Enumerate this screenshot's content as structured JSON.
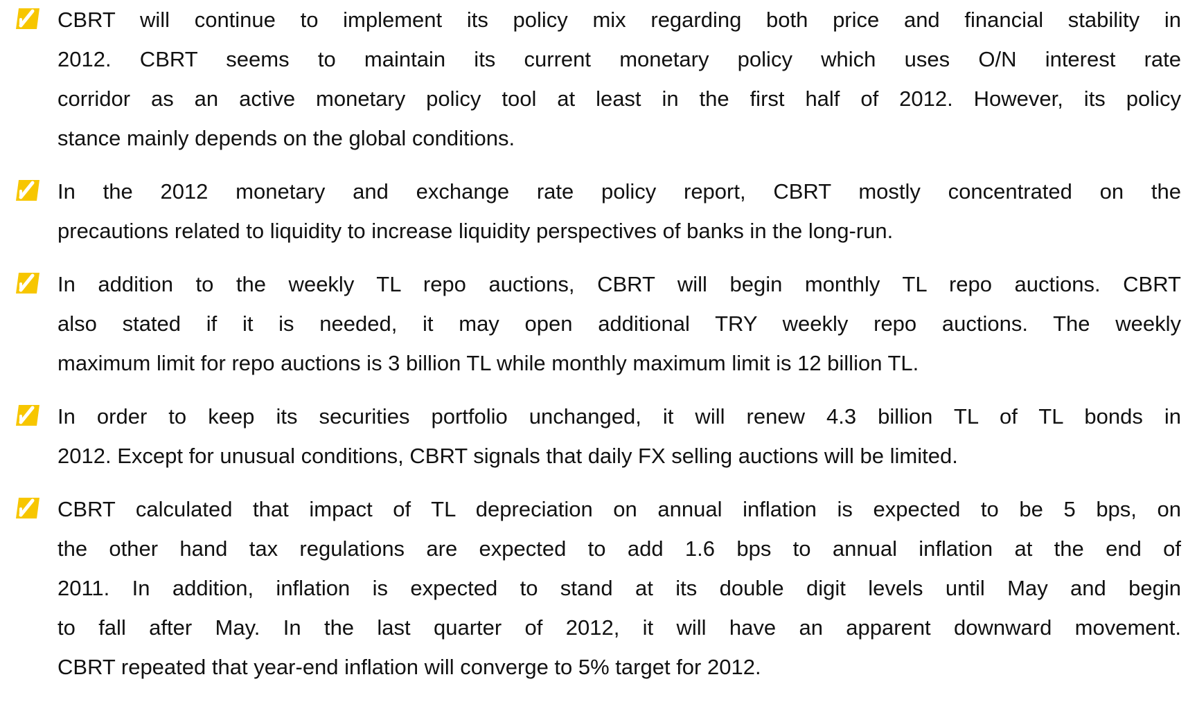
{
  "bullets": [
    {
      "lines": [
        "CBRT will continue to implement its policy mix regarding both price and financial stability in",
        "2012. CBRT seems to maintain its current monetary policy which uses O/N interest rate",
        "corridor as an active monetary policy tool at least in the first half of 2012. However, its policy",
        "stance mainly depends on the global conditions."
      ]
    },
    {
      "lines": [
        "In the 2012 monetary and exchange rate policy report, CBRT mostly concentrated on the",
        "precautions related to liquidity to increase liquidity perspectives of banks in the long-run."
      ]
    },
    {
      "lines": [
        "In addition to the weekly  TL repo auctions, CBRT will begin monthly TL repo auctions. CBRT",
        "also stated if it is needed, it may open additional TRY weekly repo auctions. The weekly",
        "maximum limit for repo auctions is 3 billion TL while monthly maximum limit is 12 billion TL."
      ]
    },
    {
      "lines": [
        "In order to keep its securities portfolio unchanged, it will renew 4.3 billion TL of TL bonds in",
        "2012. Except for unusual conditions, CBRT signals that daily FX selling auctions will be limited."
      ]
    },
    {
      "lines": [
        "CBRT calculated that impact of TL depreciation on annual inflation is expected to be 5 bps, on",
        "the other hand tax regulations are expected to add 1.6 bps to annual inflation at the end of",
        "2011. In addition, inflation is expected to stand at its double digit levels until May and begin",
        "to fall after May. In the last quarter of 2012, it will have an apparent downward movement.",
        "CBRT repeated that year-end inflation will converge to 5% target for 2012."
      ]
    }
  ]
}
